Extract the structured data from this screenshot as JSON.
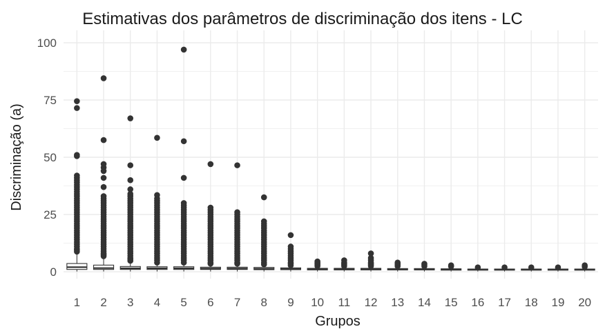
{
  "chart_data": {
    "type": "boxplot",
    "title": "Estimativas dos parâmetros de discriminação dos itens - LC",
    "xlabel": "Grupos",
    "ylabel": "Discriminação (a)",
    "ylim": [
      -3,
      100
    ],
    "yticks": [
      0,
      25,
      50,
      75,
      100
    ],
    "grid": true,
    "legend": "none",
    "categories": [
      "1",
      "2",
      "3",
      "4",
      "5",
      "6",
      "7",
      "8",
      "9",
      "10",
      "11",
      "12",
      "13",
      "14",
      "15",
      "16",
      "17",
      "18",
      "19",
      "20"
    ],
    "boxes": [
      {
        "group": "1",
        "q1": 1.0,
        "median": 2.0,
        "q3": 3.6,
        "whisker_low": 0.1,
        "whisker_high": 8.5,
        "outliers": [
          8.8,
          9.5,
          10,
          11,
          12,
          13,
          14,
          15,
          16,
          17,
          18,
          19,
          20,
          21,
          22,
          23,
          24,
          25,
          26,
          27,
          28,
          29,
          30,
          31,
          32,
          33,
          34,
          35,
          36,
          37,
          38,
          39,
          40,
          41,
          42,
          50.5,
          51,
          71.5,
          74.5
        ]
      },
      {
        "group": "2",
        "q1": 1.0,
        "median": 1.6,
        "q3": 2.9,
        "whisker_low": 0.1,
        "whisker_high": 6.5,
        "outliers": [
          6.8,
          7.5,
          8,
          9,
          10,
          11,
          12,
          13,
          14,
          15,
          16,
          17,
          18,
          19,
          20,
          21,
          22,
          23,
          24,
          25,
          26,
          27,
          28,
          29,
          30,
          31,
          32,
          33,
          37,
          41,
          44,
          45.5,
          47,
          57.5,
          84.5
        ]
      },
      {
        "group": "3",
        "q1": 1.0,
        "median": 1.5,
        "q3": 2.3,
        "whisker_low": 0.1,
        "whisker_high": 4.5,
        "outliers": [
          4.8,
          5.5,
          6,
          7,
          8,
          9,
          10,
          11,
          12,
          13,
          14,
          15,
          16,
          17,
          18,
          19,
          20,
          21,
          22,
          23,
          24,
          25,
          26,
          27,
          28,
          29,
          30,
          31,
          32,
          33,
          34,
          36,
          40,
          46.5,
          67
        ]
      },
      {
        "group": "4",
        "q1": 1.0,
        "median": 1.5,
        "q3": 2.2,
        "whisker_low": 0.1,
        "whisker_high": 3.5,
        "outliers": [
          4,
          5,
          6,
          7,
          8,
          9,
          10,
          11,
          12,
          13,
          14,
          15,
          16,
          17,
          18,
          19,
          20,
          21,
          22,
          23,
          24,
          25,
          26,
          27,
          28,
          29,
          30,
          31,
          32,
          33.5,
          58.5
        ]
      },
      {
        "group": "5",
        "q1": 1.0,
        "median": 1.5,
        "q3": 2.2,
        "whisker_low": 0.1,
        "whisker_high": 3.5,
        "outliers": [
          4,
          5,
          6,
          7,
          8,
          9,
          10,
          11,
          12,
          13,
          14,
          15,
          16,
          17,
          18,
          19,
          20,
          21,
          22,
          23,
          24,
          25,
          26,
          27,
          28,
          29,
          30,
          41,
          57,
          97
        ]
      },
      {
        "group": "6",
        "q1": 1.0,
        "median": 1.4,
        "q3": 2.0,
        "whisker_low": 0.1,
        "whisker_high": 3.2,
        "outliers": [
          3.5,
          4,
          5,
          6,
          7,
          8,
          9,
          10,
          11,
          12,
          13,
          14,
          15,
          16,
          17,
          18,
          19,
          20,
          21,
          22,
          23,
          24,
          25,
          26,
          27,
          28,
          47
        ]
      },
      {
        "group": "7",
        "q1": 1.0,
        "median": 1.4,
        "q3": 2.0,
        "whisker_low": 0.1,
        "whisker_high": 3.0,
        "outliers": [
          3.5,
          4,
          5,
          6,
          7,
          8,
          9,
          10,
          11,
          12,
          13,
          14,
          15,
          16,
          17,
          18,
          19,
          20,
          21,
          22,
          23,
          24,
          25,
          26,
          46.5
        ]
      },
      {
        "group": "8",
        "q1": 0.9,
        "median": 1.3,
        "q3": 1.9,
        "whisker_low": 0.1,
        "whisker_high": 2.8,
        "outliers": [
          3.2,
          4,
          5,
          6,
          7,
          8,
          9,
          10,
          11,
          12,
          13,
          14,
          15,
          16,
          17,
          18,
          19,
          20,
          21,
          22,
          32.5
        ]
      },
      {
        "group": "9",
        "q1": 0.9,
        "median": 1.2,
        "q3": 1.7,
        "whisker_low": 0.1,
        "whisker_high": 2.4,
        "outliers": [
          2.8,
          3.5,
          4,
          5,
          6,
          7,
          8,
          9,
          10,
          11,
          16
        ]
      },
      {
        "group": "10",
        "q1": 0.8,
        "median": 1.1,
        "q3": 1.5,
        "whisker_low": 0.1,
        "whisker_high": 2.2,
        "outliers": [
          2.5,
          3,
          3.5,
          4,
          4.5
        ]
      },
      {
        "group": "11",
        "q1": 0.8,
        "median": 1.1,
        "q3": 1.5,
        "whisker_low": 0.1,
        "whisker_high": 2.2,
        "outliers": [
          2.5,
          3,
          3.5,
          4,
          5
        ]
      },
      {
        "group": "12",
        "q1": 0.8,
        "median": 1.1,
        "q3": 1.5,
        "whisker_low": 0.1,
        "whisker_high": 2.2,
        "outliers": [
          2.5,
          3,
          3.5,
          4,
          5,
          6,
          8
        ]
      },
      {
        "group": "13",
        "q1": 0.8,
        "median": 1.0,
        "q3": 1.4,
        "whisker_low": 0.1,
        "whisker_high": 2.0,
        "outliers": [
          2.4,
          3,
          3.5,
          4
        ]
      },
      {
        "group": "14",
        "q1": 0.8,
        "median": 1.0,
        "q3": 1.4,
        "whisker_low": 0.1,
        "whisker_high": 2.0,
        "outliers": [
          2.4,
          3,
          3.5
        ]
      },
      {
        "group": "15",
        "q1": 0.7,
        "median": 1.0,
        "q3": 1.3,
        "whisker_low": 0.1,
        "whisker_high": 1.9,
        "outliers": [
          2.3,
          2.8
        ]
      },
      {
        "group": "16",
        "q1": 0.7,
        "median": 0.9,
        "q3": 1.2,
        "whisker_low": 0.1,
        "whisker_high": 1.6,
        "outliers": [
          1.9
        ]
      },
      {
        "group": "17",
        "q1": 0.7,
        "median": 0.9,
        "q3": 1.2,
        "whisker_low": 0.1,
        "whisker_high": 1.6,
        "outliers": [
          1.9
        ]
      },
      {
        "group": "18",
        "q1": 0.7,
        "median": 0.9,
        "q3": 1.2,
        "whisker_low": 0.1,
        "whisker_high": 1.6,
        "outliers": [
          1.9
        ]
      },
      {
        "group": "19",
        "q1": 0.7,
        "median": 0.9,
        "q3": 1.2,
        "whisker_low": 0.1,
        "whisker_high": 1.6,
        "outliers": [
          1.9
        ]
      },
      {
        "group": "20",
        "q1": 0.7,
        "median": 0.9,
        "q3": 1.2,
        "whisker_low": 0.1,
        "whisker_high": 1.8,
        "outliers": [
          2.2,
          2.8
        ]
      }
    ]
  },
  "colors": {
    "background": "#ffffff",
    "grid": "#ebebeb",
    "box_outline": "#333333",
    "point": "#333333"
  }
}
